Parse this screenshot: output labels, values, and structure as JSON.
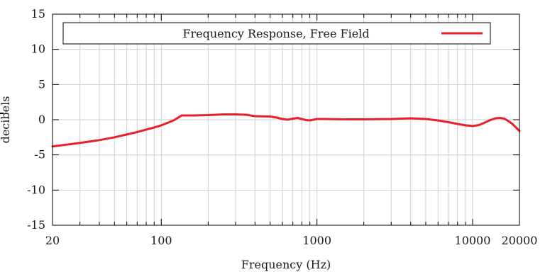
{
  "chart_data": {
    "type": "line",
    "title": "",
    "xlabel": "Frequency (Hz)",
    "ylabel": "decibels",
    "xscale": "log",
    "xlim": [
      20,
      20000
    ],
    "ylim": [
      -15,
      15
    ],
    "grid": true,
    "legend_position": "top",
    "x_ticks": [
      {
        "value": 20,
        "label": "20"
      },
      {
        "value": 100,
        "label": "100"
      },
      {
        "value": 1000,
        "label": "1000"
      },
      {
        "value": 10000,
        "label": "10000"
      },
      {
        "value": 20000,
        "label": "20000"
      }
    ],
    "y_ticks": [
      {
        "value": 15,
        "label": "15"
      },
      {
        "value": 10,
        "label": "10"
      },
      {
        "value": 5,
        "label": "5"
      },
      {
        "value": 0,
        "label": "0"
      },
      {
        "value": -5,
        "label": "-5"
      },
      {
        "value": -10,
        "label": "-10"
      },
      {
        "value": -15,
        "label": "-15"
      }
    ],
    "series": [
      {
        "name": "Frequency Response, Free Field",
        "color": "#e8202a",
        "x": [
          20,
          30,
          40,
          50,
          60,
          70,
          80,
          90,
          100,
          120,
          135,
          160,
          200,
          250,
          300,
          350,
          400,
          500,
          550,
          600,
          650,
          700,
          750,
          800,
          850,
          900,
          1000,
          1100,
          1500,
          2000,
          3000,
          4000,
          5000,
          6000,
          7000,
          8000,
          9000,
          10000,
          11000,
          12000,
          13000,
          14000,
          15000,
          16000,
          17000,
          18000,
          19000,
          20000
        ],
        "y": [
          -3.8,
          -3.3,
          -2.9,
          -2.5,
          -2.1,
          -1.75,
          -1.4,
          -1.1,
          -0.8,
          -0.1,
          0.6,
          0.6,
          0.65,
          0.75,
          0.75,
          0.7,
          0.5,
          0.45,
          0.3,
          0.1,
          0.0,
          0.15,
          0.25,
          0.1,
          -0.05,
          -0.1,
          0.1,
          0.1,
          0.05,
          0.05,
          0.1,
          0.2,
          0.1,
          -0.1,
          -0.35,
          -0.6,
          -0.8,
          -0.9,
          -0.75,
          -0.4,
          -0.05,
          0.2,
          0.25,
          0.15,
          -0.2,
          -0.6,
          -1.1,
          -1.6
        ]
      }
    ]
  }
}
